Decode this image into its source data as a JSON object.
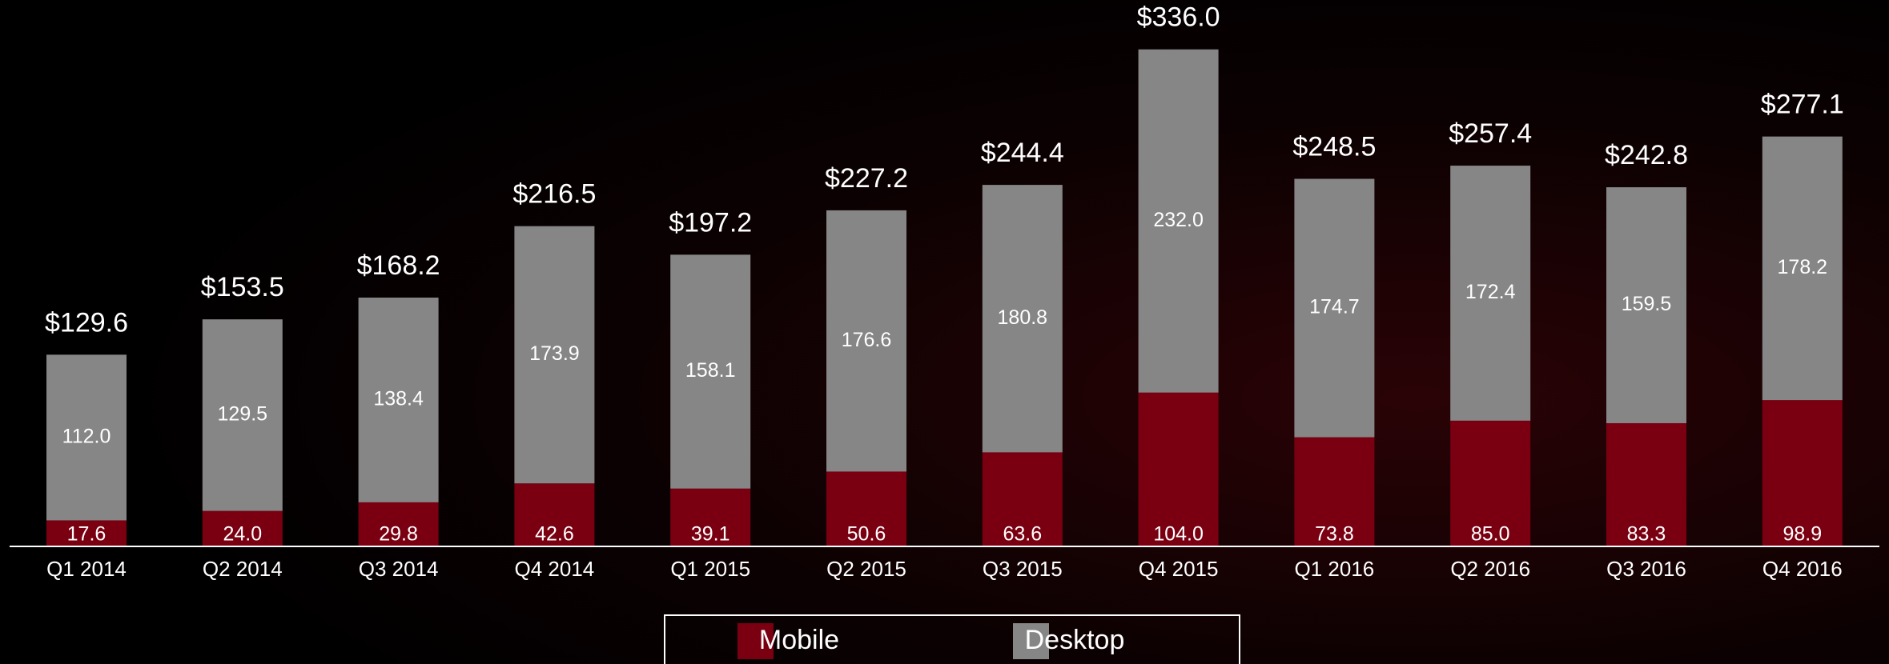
{
  "chart_data": {
    "type": "stacked_bar",
    "categories": [
      "Q1 2014",
      "Q2 2014",
      "Q3 2014",
      "Q4 2014",
      "Q1 2015",
      "Q2 2015",
      "Q3 2015",
      "Q4 2015",
      "Q1 2016",
      "Q2 2016",
      "Q3 2016",
      "Q4 2016"
    ],
    "series": [
      {
        "name": "Mobile",
        "color": "#7a0011",
        "values": [
          17.6,
          24.0,
          29.8,
          42.6,
          39.1,
          50.6,
          63.6,
          104.0,
          73.8,
          85.0,
          83.3,
          98.9
        ],
        "value_labels": [
          "17.6",
          "24.0",
          "29.8",
          "42.6",
          "39.1",
          "50.6",
          "63.6",
          "104.0",
          "73.8",
          "85.0",
          "83.3",
          "98.9"
        ]
      },
      {
        "name": "Desktop",
        "color": "#868686",
        "values": [
          112.0,
          129.5,
          138.4,
          173.9,
          158.1,
          176.6,
          180.8,
          232.0,
          174.7,
          172.4,
          159.5,
          178.2
        ],
        "value_labels": [
          "112.0",
          "129.5",
          "138.4",
          "173.9",
          "158.1",
          "176.6",
          "180.8",
          "232.0",
          "174.7",
          "172.4",
          "159.5",
          "178.2"
        ]
      }
    ],
    "totals": [
      129.6,
      153.5,
      168.2,
      216.5,
      197.2,
      227.2,
      244.4,
      336.0,
      248.5,
      257.4,
      242.8,
      277.1
    ],
    "total_labels": [
      "$129.6",
      "$153.5",
      "$168.2",
      "$216.5",
      "$197.2",
      "$227.2",
      "$244.4",
      "$336.0",
      "$248.5",
      "$257.4",
      "$242.8",
      "$277.1"
    ]
  }
}
